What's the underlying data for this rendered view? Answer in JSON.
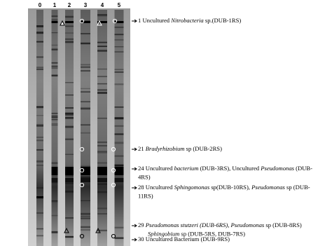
{
  "lanes": [
    "0",
    "1",
    "2",
    "3",
    "4",
    "5"
  ],
  "annotations": [
    {
      "lines": [
        [
          {
            "text": "1 Uncultured ",
            "italic": false
          },
          {
            "text": "Nitrobacteria",
            "italic": true
          },
          {
            "text": " sp.(DUB-1RS)",
            "italic": false
          }
        ]
      ]
    },
    {
      "lines": [
        [
          {
            "text": "21 ",
            "italic": false
          },
          {
            "text": "Bradyrhizobium",
            "italic": true
          },
          {
            "text": " sp (DUB-2RS)",
            "italic": false
          }
        ]
      ]
    },
    {
      "lines": [
        [
          {
            "text": "24 Uncultured ",
            "italic": false
          },
          {
            "text": "bacterium",
            "italic": true
          },
          {
            "text": " (DUB-3RS), Uncultured ",
            "italic": false
          },
          {
            "text": "Pseudomonas",
            "italic": true
          },
          {
            "text": " (DUB-",
            "italic": false
          }
        ],
        [
          {
            "text": "4RS)",
            "italic": false
          }
        ]
      ]
    },
    {
      "lines": [
        [
          {
            "text": "28 Uncultured ",
            "italic": false
          },
          {
            "text": "Sphingomonas",
            "italic": true
          },
          {
            "text": " sp(DUB-10RS), ",
            "italic": false
          },
          {
            "text": "Pseudomonas",
            "italic": true
          },
          {
            "text": " sp (DUB-",
            "italic": false
          }
        ],
        [
          {
            "text": "11RS)",
            "italic": false
          }
        ]
      ]
    },
    {
      "lines": [
        [
          {
            "text": "29 ",
            "italic": false
          },
          {
            "text": "Pseudomonas stutzeri (DUB-6RS)",
            "italic": true
          },
          {
            "text": ", ",
            "italic": false
          },
          {
            "text": "Pseudomonas",
            "italic": true
          },
          {
            "text": " sp (DUB-8RS)",
            "italic": false
          }
        ],
        [
          {
            "text": "Sphingobium",
            "italic": true
          },
          {
            "text": " sp (DUB-5RS, DUB-7RS)",
            "italic": false
          }
        ]
      ]
    },
    {
      "lines": [
        [
          {
            "text": "30 Uncultured Bacterium (DUB-9RS)",
            "italic": false
          }
        ]
      ]
    }
  ]
}
